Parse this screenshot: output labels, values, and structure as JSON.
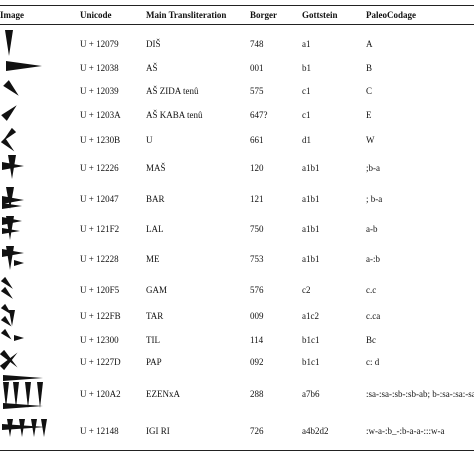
{
  "table": {
    "headers": [
      "Image",
      "Unicode",
      "Main Transliteration",
      "Borger",
      "Gottstein",
      "PaleoCodage"
    ],
    "rows": [
      [
        "U + 12079",
        "DIŠ",
        "748",
        "a1",
        "A"
      ],
      [
        "U + 12038",
        "AŠ",
        "001",
        "b1",
        "B"
      ],
      [
        "U + 12039",
        "AŠ ZIDA tenû",
        "575",
        "c1",
        "C"
      ],
      [
        "U + 1203A",
        "AŠ KABA tenû",
        "647?",
        "c1",
        "E"
      ],
      [
        "U + 1230B",
        "U",
        "661",
        "d1",
        "W"
      ],
      [
        "U + 12226",
        "MAŠ",
        "120",
        "a1b1",
        ";b-a"
      ],
      [
        "U + 12047",
        "BAR",
        "121",
        "a1b1",
        "; b-a"
      ],
      [
        "U + 121F2",
        "LAL",
        "750",
        "a1b1",
        "a-b"
      ],
      [
        "U + 12228",
        "ME",
        "753",
        "a1b1",
        "a-:b"
      ],
      [
        "U + 120F5",
        "GAM",
        "576",
        "c2",
        "c.c"
      ],
      [
        "U + 122FB",
        "TAR",
        "009",
        "a1c2",
        "c.ca"
      ],
      [
        "U + 12300",
        "TIL",
        "114",
        "b1c1",
        "Bc"
      ],
      [
        "U + 1227D",
        "PAP",
        "092",
        "b1c1",
        "c: d"
      ],
      [
        "U + 120A2",
        "EZENxA",
        "288",
        "a7b6",
        ":sa-:sa-:sb-:sb-ab; b-:sa-:sa:-sa-a-:sa- a-:sa-"
      ],
      [
        "U + 12148",
        "IGI RI",
        "726",
        "a4b2d2",
        ":w-a-:b_-:b-a-a-:::w-a"
      ]
    ]
  }
}
